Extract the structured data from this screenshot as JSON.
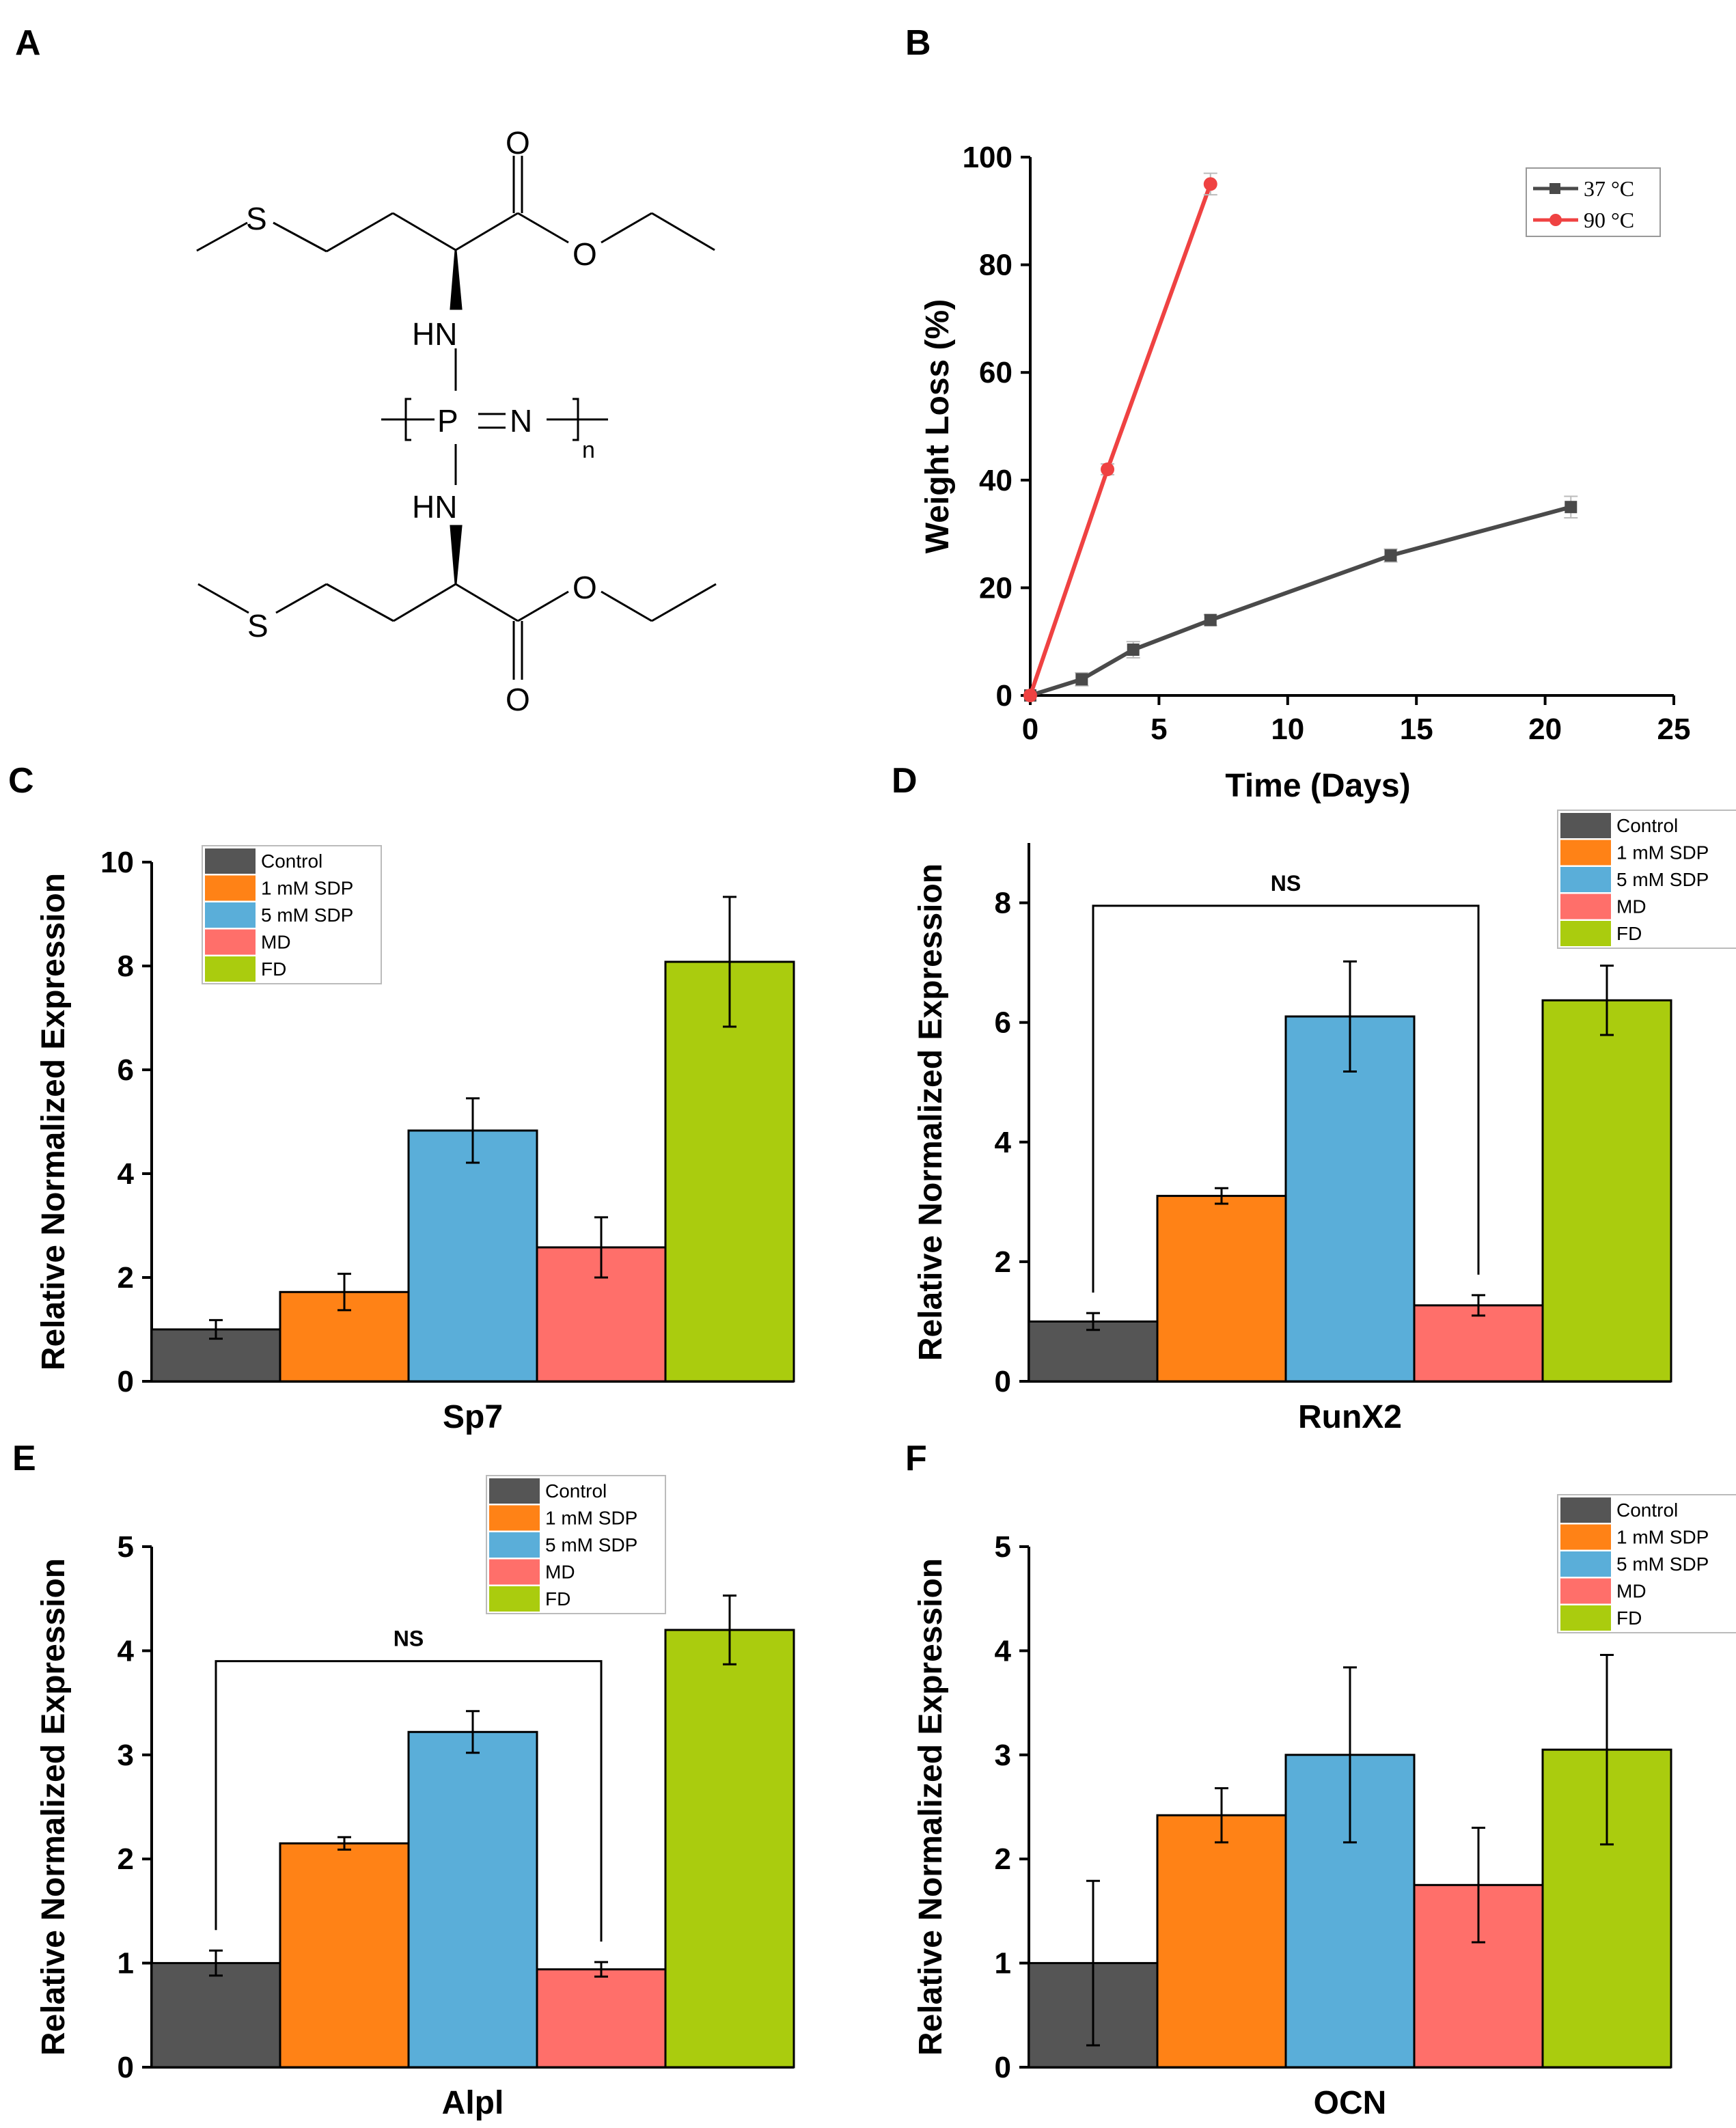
{
  "panels": {
    "A": "A",
    "B": "B",
    "C": "C",
    "D": "D",
    "E": "E",
    "F": "F"
  },
  "structure": {
    "atoms": {
      "S_top": "S",
      "O_top_carbonyl": "O",
      "O_top_ester": "O",
      "HN_top": "HN",
      "P": "P",
      "N": "N",
      "n": "n",
      "HN_bottom": "HN",
      "S_bottom": "S",
      "O_bottom_ester": "O",
      "O_bottom_carbonyl": "O"
    }
  },
  "colors": {
    "Control": "#555555",
    "1 mM SDP": "#ff8216",
    "5 mM SDP": "#5aaed9",
    "MD": "#ff6f6a",
    "FD": "#aacc0e",
    "37": "#4a4a4a",
    "90": "#ef4242"
  },
  "chart_data": [
    {
      "panel": "B",
      "type": "line",
      "xlabel": "Time (Days)",
      "ylabel": "Weight Loss (%)",
      "xlim": [
        0,
        25
      ],
      "ylim": [
        0,
        100
      ],
      "xticks": [
        "0",
        "5",
        "10",
        "15",
        "20",
        "25"
      ],
      "yticks": [
        "0",
        "20",
        "40",
        "60",
        "80",
        "100"
      ],
      "legend_position": "top-right",
      "series": [
        {
          "name": "37 °C",
          "marker": "square",
          "x": [
            0,
            2,
            4,
            7,
            14,
            21
          ],
          "y": [
            0,
            3,
            8.5,
            14,
            26,
            35
          ],
          "err": [
            0,
            1.2,
            1.5,
            1,
            1.2,
            2
          ]
        },
        {
          "name": "90 °C",
          "marker": "circle",
          "x": [
            0,
            3,
            7
          ],
          "y": [
            0,
            42,
            95
          ],
          "err": [
            0,
            1,
            2
          ]
        }
      ]
    },
    {
      "panel": "C",
      "type": "bar",
      "gene": "Sp7",
      "ylabel": "Relative Normalized Expression",
      "ylim": [
        0,
        10
      ],
      "yticks": [
        "0",
        "2",
        "4",
        "6",
        "8",
        "10"
      ],
      "legend_position": "top-left",
      "categories": [
        "Control",
        "1 mM SDP",
        "5 mM SDP",
        "MD",
        "FD"
      ],
      "values": [
        1.0,
        1.72,
        4.83,
        2.58,
        8.08
      ],
      "errors": [
        0.18,
        0.35,
        0.62,
        0.58,
        1.25
      ]
    },
    {
      "panel": "D",
      "type": "bar",
      "gene": "RunX2",
      "ylabel": "Relative Normalized Expression",
      "ylim": [
        0,
        9
      ],
      "yticks": [
        "0",
        "2",
        "4",
        "6",
        "8"
      ],
      "legend_position": "top-right",
      "categories": [
        "Control",
        "1 mM SDP",
        "5 mM SDP",
        "MD",
        "FD"
      ],
      "values": [
        1.0,
        3.1,
        6.1,
        1.27,
        6.37
      ],
      "errors": [
        0.14,
        0.13,
        0.92,
        0.17,
        0.58
      ],
      "annotation": {
        "text": "NS",
        "from": "Control",
        "to": "MD",
        "y": 7.95
      }
    },
    {
      "panel": "E",
      "type": "bar",
      "gene": "Alpl",
      "ylabel": "Relative Normalized Expression",
      "ylim": [
        0,
        5
      ],
      "yticks": [
        "0",
        "1",
        "2",
        "3",
        "4",
        "5"
      ],
      "legend_position": "top-right",
      "categories": [
        "Control",
        "1 mM SDP",
        "5 mM SDP",
        "MD",
        "FD"
      ],
      "values": [
        1.0,
        2.15,
        3.22,
        0.94,
        4.2
      ],
      "errors": [
        0.12,
        0.06,
        0.2,
        0.07,
        0.33
      ],
      "annotation": {
        "text": "NS",
        "from": "Control",
        "to": "MD",
        "y": 3.9
      }
    },
    {
      "panel": "F",
      "type": "bar",
      "gene": "OCN",
      "ylabel": "Relative Normalized Expression",
      "ylim": [
        0,
        5
      ],
      "yticks": [
        "0",
        "1",
        "2",
        "3",
        "4",
        "5"
      ],
      "legend_position": "top-right",
      "categories": [
        "Control",
        "1 mM SDP",
        "5 mM SDP",
        "MD",
        "FD"
      ],
      "values": [
        1.0,
        2.42,
        3.0,
        1.75,
        3.05
      ],
      "errors": [
        0.79,
        0.26,
        0.84,
        0.55,
        0.91
      ]
    }
  ]
}
